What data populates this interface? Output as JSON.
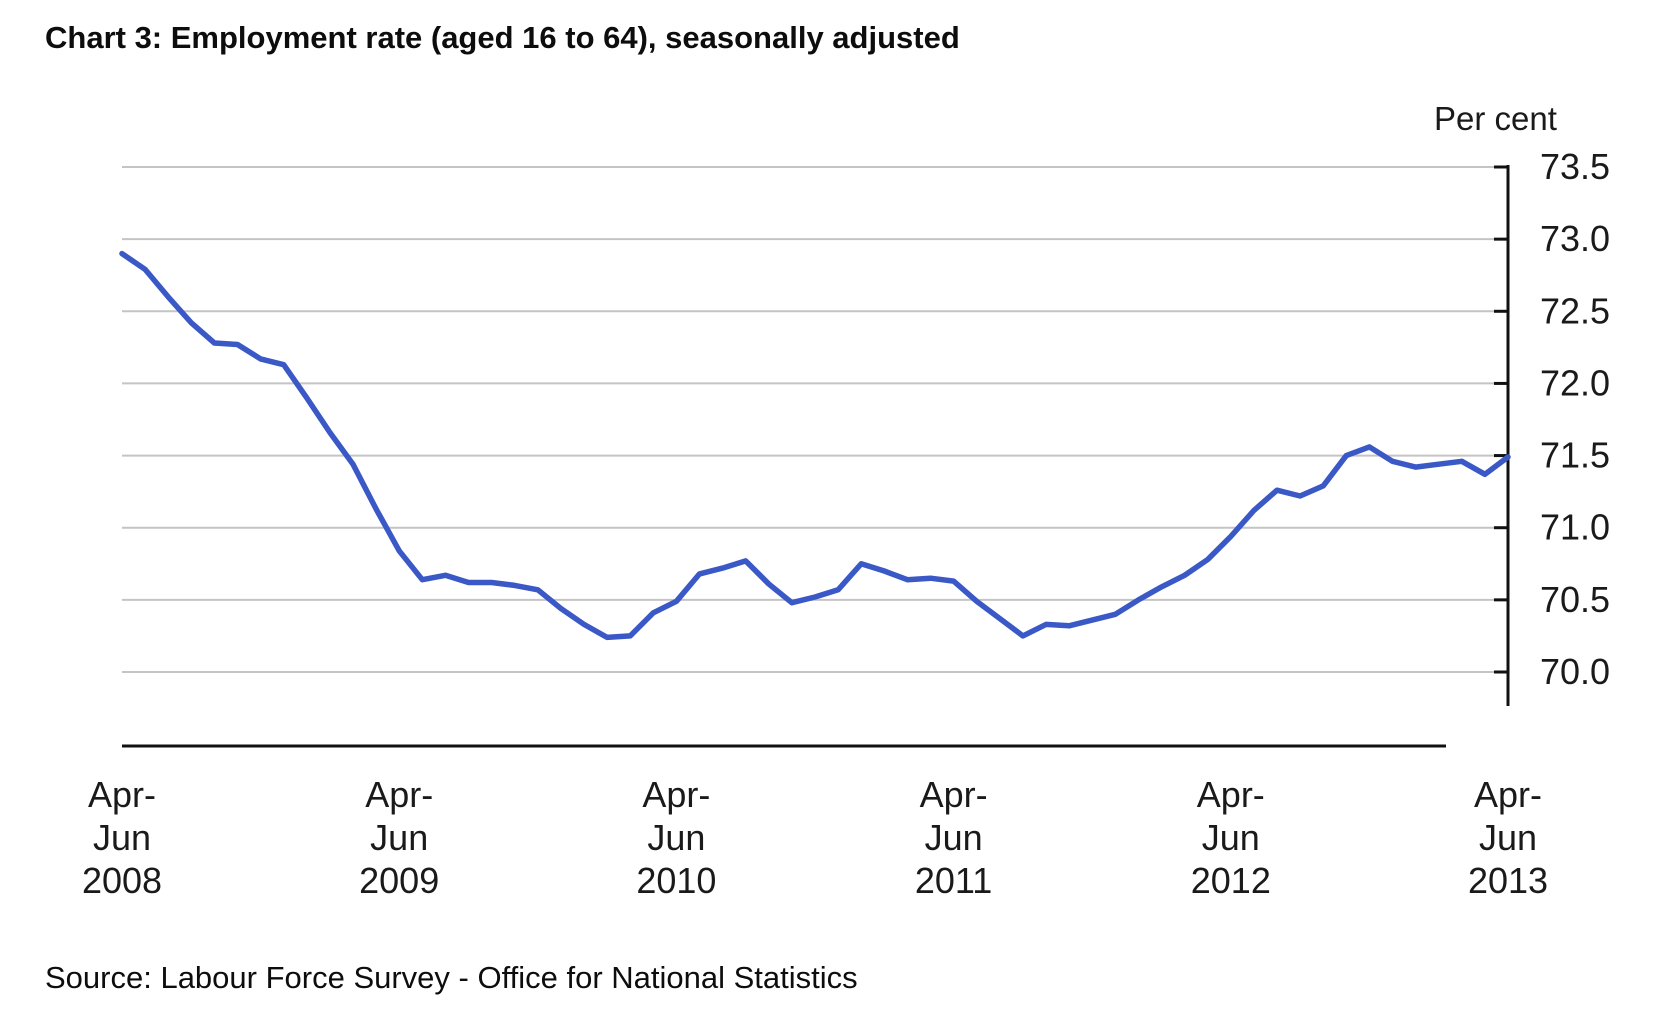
{
  "page": {
    "title": "Chart 3: Employment rate (aged 16 to 64), seasonally adjusted",
    "source": "Source: Labour Force Survey - Office for National Statistics"
  },
  "chart_data": {
    "type": "line",
    "title": "Chart 3: Employment rate (aged 16 to 64), seasonally adjusted",
    "unit_label": "Per cent",
    "xlabel": "",
    "ylabel": "Per cent",
    "ylim": [
      70.0,
      73.5
    ],
    "y_ticks": [
      70.0,
      70.5,
      71.0,
      71.5,
      72.0,
      72.5,
      73.0,
      73.5
    ],
    "y_tick_decimals": 1,
    "grid": "horizontal",
    "legend_position": "none",
    "x_tick_labels": [
      [
        "Apr-",
        "Jun",
        "2008"
      ],
      [
        "Apr-",
        "Jun",
        "2009"
      ],
      [
        "Apr-",
        "Jun",
        "2010"
      ],
      [
        "Apr-",
        "Jun",
        "2011"
      ],
      [
        "Apr-",
        "Jun",
        "2012"
      ],
      [
        "Apr-",
        "Jun",
        "2013"
      ]
    ],
    "x_tick_indices": [
      0,
      12,
      24,
      36,
      48,
      60
    ],
    "x_period": "monthly rolling quarters, Apr-Jun 2008 to Apr-Jun 2013",
    "series": [
      {
        "name": "Employment rate (aged 16 to 64), seasonally adjusted",
        "color": "#3a58c6",
        "values": [
          72.9,
          72.79,
          72.6,
          72.42,
          72.28,
          72.27,
          72.17,
          72.13,
          71.9,
          71.66,
          71.44,
          71.13,
          70.84,
          70.64,
          70.67,
          70.62,
          70.62,
          70.6,
          70.57,
          70.44,
          70.33,
          70.24,
          70.25,
          70.41,
          70.49,
          70.68,
          70.72,
          70.77,
          70.61,
          70.48,
          70.52,
          70.57,
          70.75,
          70.7,
          70.64,
          70.65,
          70.63,
          70.49,
          70.37,
          70.25,
          70.33,
          70.32,
          70.36,
          70.4,
          70.5,
          70.59,
          70.67,
          70.78,
          70.94,
          71.12,
          71.26,
          71.22,
          71.29,
          71.5,
          71.56,
          71.46,
          71.42,
          71.44,
          71.46,
          71.37,
          71.49
        ]
      }
    ],
    "source": "Source: Labour Force Survey - Office for National Statistics"
  },
  "colors": {
    "line": "#3a58c6",
    "grid": "#c4c4c4",
    "axis": "#111111",
    "text": "#1a1a1a",
    "background": "#ffffff"
  }
}
